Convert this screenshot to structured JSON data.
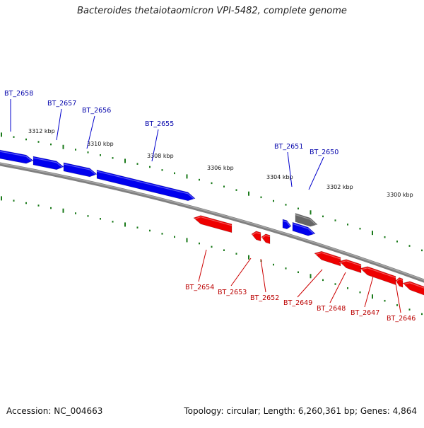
{
  "title": "Bacteroides thetaiotaomicron VPI-5482, complete genome",
  "footer": {
    "accession": "Accession: NC_004663",
    "summary": "Topology: circular; Length: 6,260,361 bp; Genes: 4,864"
  },
  "colors": {
    "forward_strand": "#0000ee",
    "reverse_strand": "#ee0000",
    "other_feature": "#666666",
    "backbone": "#808080",
    "ticks": "#1a7a1a",
    "forward_label": "#0000aa",
    "reverse_label": "#bb0000"
  },
  "scale_labels": [
    "3312 kbp",
    "3310 kbp",
    "3308 kbp",
    "3306 kbp",
    "3304 kbp",
    "3302 kbp",
    "3300 kbp"
  ],
  "forward_genes": [
    "BT_2658",
    "BT_2657",
    "BT_2656",
    "BT_2655",
    "BT_2651",
    "BT_2650"
  ],
  "reverse_genes": [
    "BT_2654",
    "BT_2653",
    "BT_2652",
    "BT_2649",
    "BT_2648",
    "BT_2647",
    "BT_2646"
  ]
}
